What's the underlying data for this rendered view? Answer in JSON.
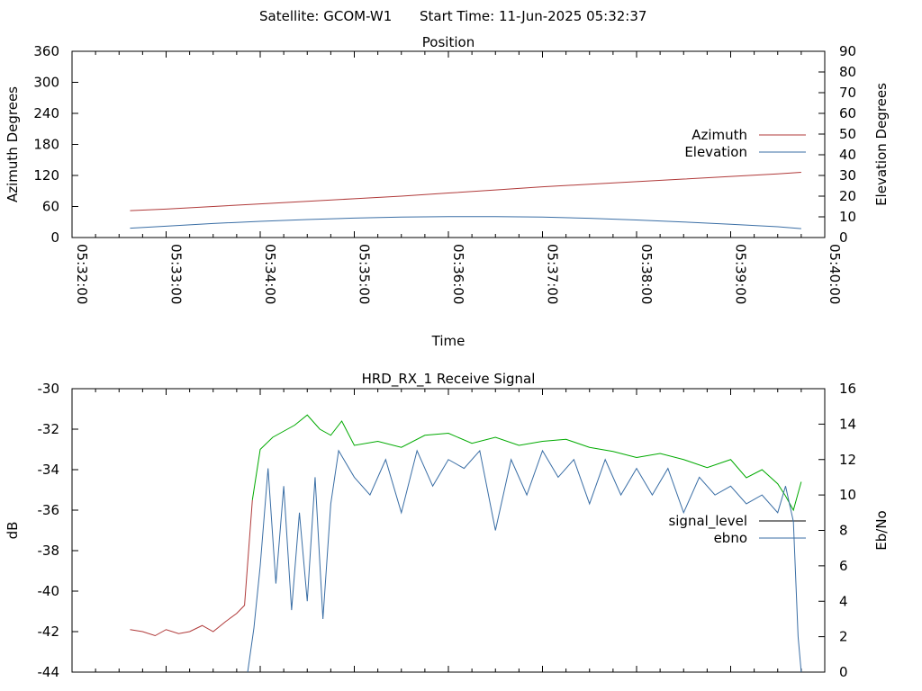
{
  "header": {
    "satellite": "Satellite: GCOM-W1",
    "start_time": "Start Time: 11-Jun-2025 05:32:37"
  },
  "chart_data": [
    {
      "type": "line",
      "title": "Position",
      "xlabel": "Time",
      "ylabel": "Azimuth Degrees",
      "y2label": "Elevation Degrees",
      "xlim": [
        "05:32:00",
        "05:40:00"
      ],
      "ylim": [
        0,
        360
      ],
      "y2lim": [
        0,
        90
      ],
      "x_ticks": [
        "05:32:00",
        "05:33:00",
        "05:34:00",
        "05:35:00",
        "05:36:00",
        "05:37:00",
        "05:38:00",
        "05:39:00",
        "05:40:00"
      ],
      "y_ticks": [
        "0",
        "60",
        "120",
        "180",
        "240",
        "300",
        "360"
      ],
      "y2_ticks": [
        "0",
        "10",
        "20",
        "30",
        "40",
        "50",
        "60",
        "70",
        "80",
        "90"
      ],
      "legend_position": "right",
      "series": [
        {
          "name": "Azimuth",
          "axis": "y",
          "color": "#b03a3a",
          "x": [
            "05:32:37",
            "05:33:00",
            "05:33:30",
            "05:34:00",
            "05:34:30",
            "05:35:00",
            "05:35:30",
            "05:36:00",
            "05:36:30",
            "05:37:00",
            "05:37:30",
            "05:38:00",
            "05:38:30",
            "05:39:00",
            "05:39:30",
            "05:39:45"
          ],
          "y": [
            52,
            55,
            60,
            65,
            70,
            75,
            80,
            86,
            92,
            98,
            103,
            108,
            113,
            118,
            123,
            126
          ]
        },
        {
          "name": "Elevation",
          "axis": "y2",
          "color": "#3a6ea5",
          "x": [
            "05:32:37",
            "05:33:00",
            "05:33:30",
            "05:34:00",
            "05:34:30",
            "05:35:00",
            "05:35:30",
            "05:36:00",
            "05:36:30",
            "05:37:00",
            "05:37:30",
            "05:38:00",
            "05:38:30",
            "05:39:00",
            "05:39:30",
            "05:39:45"
          ],
          "y": [
            4.5,
            5.5,
            6.8,
            7.8,
            8.7,
            9.4,
            9.9,
            10.1,
            10.1,
            9.9,
            9.3,
            8.5,
            7.5,
            6.4,
            5.2,
            4.3
          ]
        }
      ]
    },
    {
      "type": "line",
      "title": "HRD_RX_1 Receive Signal",
      "ylabel": "dB",
      "y2label": "Eb/No",
      "xlim": [
        "05:32:00",
        "05:40:00"
      ],
      "ylim": [
        -44,
        -30
      ],
      "y2lim": [
        0,
        16
      ],
      "y_ticks": [
        "-30",
        "-32",
        "-34",
        "-36",
        "-38",
        "-40",
        "-42",
        "-44"
      ],
      "y2_ticks": [
        "0",
        "2",
        "4",
        "6",
        "8",
        "10",
        "12",
        "14",
        "16"
      ],
      "legend_position": "right",
      "series": [
        {
          "name": "signal_level",
          "axis": "y",
          "segments_color_note": "red below -40.5, green above",
          "low_color": "#b03a3a",
          "high_color": "#00aa00",
          "x": [
            "05:32:37",
            "05:32:45",
            "05:32:53",
            "05:33:00",
            "05:33:08",
            "05:33:15",
            "05:33:23",
            "05:33:30",
            "05:33:38",
            "05:33:45",
            "05:33:50",
            "05:33:55",
            "05:34:00",
            "05:34:08",
            "05:34:15",
            "05:34:22",
            "05:34:30",
            "05:34:38",
            "05:34:45",
            "05:34:52",
            "05:35:00",
            "05:35:15",
            "05:35:30",
            "05:35:45",
            "05:36:00",
            "05:36:15",
            "05:36:30",
            "05:36:45",
            "05:37:00",
            "05:37:15",
            "05:37:30",
            "05:37:45",
            "05:38:00",
            "05:38:15",
            "05:38:30",
            "05:38:45",
            "05:39:00",
            "05:39:10",
            "05:39:20",
            "05:39:30",
            "05:39:35",
            "05:39:40",
            "05:39:45"
          ],
          "y": [
            -41.9,
            -42.0,
            -42.2,
            -41.9,
            -42.1,
            -42.0,
            -41.7,
            -42.0,
            -41.5,
            -41.1,
            -40.7,
            -35.5,
            -33.0,
            -32.4,
            -32.1,
            -31.8,
            -31.3,
            -32.0,
            -32.3,
            -31.6,
            -32.8,
            -32.6,
            -32.9,
            -32.3,
            -32.2,
            -32.7,
            -32.4,
            -32.8,
            -32.6,
            -32.5,
            -32.9,
            -33.1,
            -33.4,
            -33.2,
            -33.5,
            -33.9,
            -33.5,
            -34.4,
            -34.0,
            -34.7,
            -35.3,
            -36.0,
            -34.6
          ]
        },
        {
          "name": "ebno",
          "axis": "y2",
          "color": "#3a6ea5",
          "x": [
            "05:33:52",
            "05:33:56",
            "05:34:00",
            "05:34:05",
            "05:34:10",
            "05:34:15",
            "05:34:20",
            "05:34:25",
            "05:34:30",
            "05:34:35",
            "05:34:40",
            "05:34:45",
            "05:34:50",
            "05:35:00",
            "05:35:10",
            "05:35:20",
            "05:35:30",
            "05:35:40",
            "05:35:50",
            "05:36:00",
            "05:36:10",
            "05:36:20",
            "05:36:30",
            "05:36:40",
            "05:36:50",
            "05:37:00",
            "05:37:10",
            "05:37:20",
            "05:37:30",
            "05:37:40",
            "05:37:50",
            "05:38:00",
            "05:38:10",
            "05:38:20",
            "05:38:30",
            "05:38:40",
            "05:38:50",
            "05:39:00",
            "05:39:10",
            "05:39:20",
            "05:39:30",
            "05:39:35",
            "05:39:40",
            "05:39:43",
            "05:39:45"
          ],
          "y": [
            0,
            2.5,
            6,
            11.5,
            5,
            10.5,
            3.5,
            9,
            4,
            11,
            3,
            9.5,
            12.5,
            11,
            10,
            12,
            9,
            12.5,
            10.5,
            12,
            11.5,
            12.5,
            8,
            12,
            10,
            12.5,
            11,
            12,
            9.5,
            12,
            10,
            11.5,
            10,
            11.5,
            9,
            11,
            10,
            10.5,
            9.5,
            10,
            9,
            10.5,
            8.5,
            2,
            0
          ]
        }
      ]
    }
  ]
}
